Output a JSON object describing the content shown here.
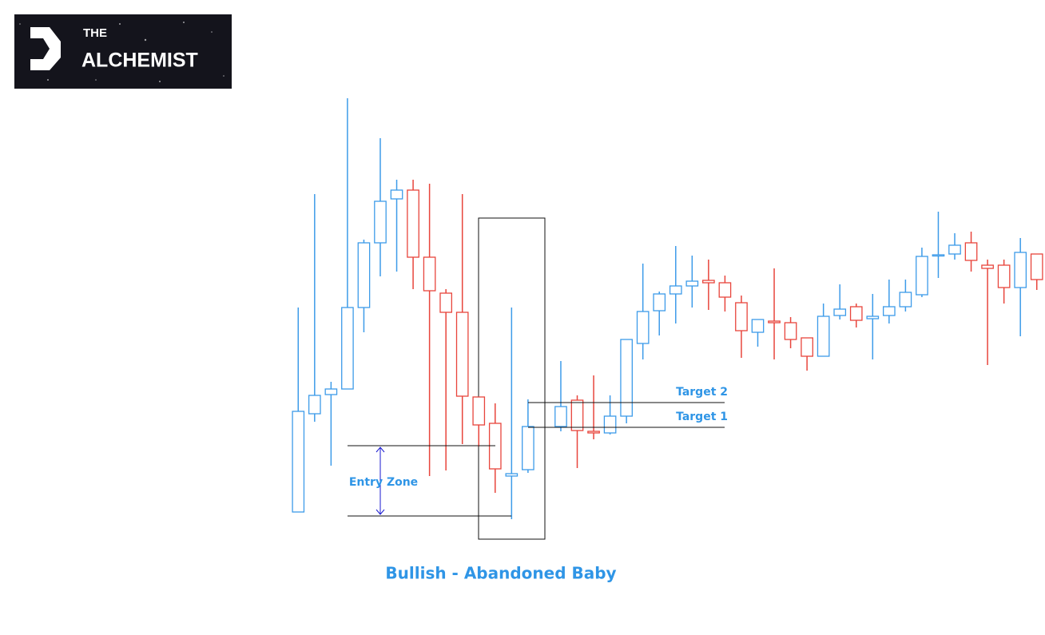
{
  "logo": {
    "line1": "THE",
    "line2": "ALCHEMIST"
  },
  "chart_data": {
    "type": "candlestick",
    "title": "Bullish - Abandoned Baby",
    "up_color": "#3d9be9",
    "down_color": "#e8453c",
    "xlim": [
      -0.5,
      45.5
    ],
    "ylim": [
      0,
      600
    ],
    "x": [
      0,
      1,
      2,
      3,
      4,
      5,
      6,
      7,
      8,
      9,
      10,
      11,
      12,
      13,
      14,
      16,
      17,
      18,
      19,
      20,
      21,
      22,
      23,
      24,
      25,
      26,
      27,
      28,
      29,
      30,
      31,
      32,
      33,
      34,
      35,
      36,
      37,
      38,
      39,
      40,
      41,
      42,
      43,
      44,
      45
    ],
    "open": [
      59,
      182,
      206,
      213,
      315,
      396,
      451,
      462,
      378,
      333,
      309,
      203,
      170,
      104,
      112,
      166,
      199,
      160,
      158,
      179,
      270,
      311,
      332,
      342,
      349,
      346,
      321,
      284,
      298,
      296,
      277,
      254,
      305,
      316,
      301,
      305,
      316,
      331,
      380,
      382,
      396,
      368,
      368,
      340,
      382
    ],
    "high": [
      315,
      457,
      222,
      577,
      400,
      527,
      475,
      475,
      470,
      338,
      457,
      203,
      195,
      315,
      200,
      248,
      205,
      230,
      205,
      275,
      370,
      335,
      392,
      380,
      375,
      355,
      330,
      300,
      364,
      303,
      277,
      320,
      344,
      320,
      332,
      350,
      350,
      390,
      435,
      408,
      410,
      375,
      375,
      402,
      382
    ],
    "low": [
      59,
      172,
      117,
      213,
      284,
      354,
      360,
      338,
      104,
      111,
      144,
      141,
      83,
      50,
      108,
      160,
      114,
      150,
      156,
      170,
      250,
      280,
      295,
      315,
      312,
      310,
      252,
      266,
      250,
      264,
      236,
      254,
      300,
      290,
      250,
      295,
      310,
      328,
      352,
      375,
      360,
      243,
      320,
      279,
      337
    ],
    "close": [
      185,
      205,
      213,
      315,
      396,
      448,
      462,
      378,
      336,
      309,
      204,
      168,
      113,
      107,
      166,
      191,
      161,
      158,
      179,
      275,
      310,
      332,
      342,
      348,
      346,
      328,
      286,
      300,
      296,
      275,
      254,
      304,
      313,
      299,
      304,
      316,
      334,
      379,
      381,
      393,
      374,
      364,
      340,
      384,
      350
    ],
    "targets": [
      {
        "label": "Target 2",
        "value": 196
      },
      {
        "label": "Target 1",
        "value": 165
      }
    ],
    "entry_zone": {
      "label": "Entry Zone",
      "range": [
        54,
        142
      ]
    }
  }
}
